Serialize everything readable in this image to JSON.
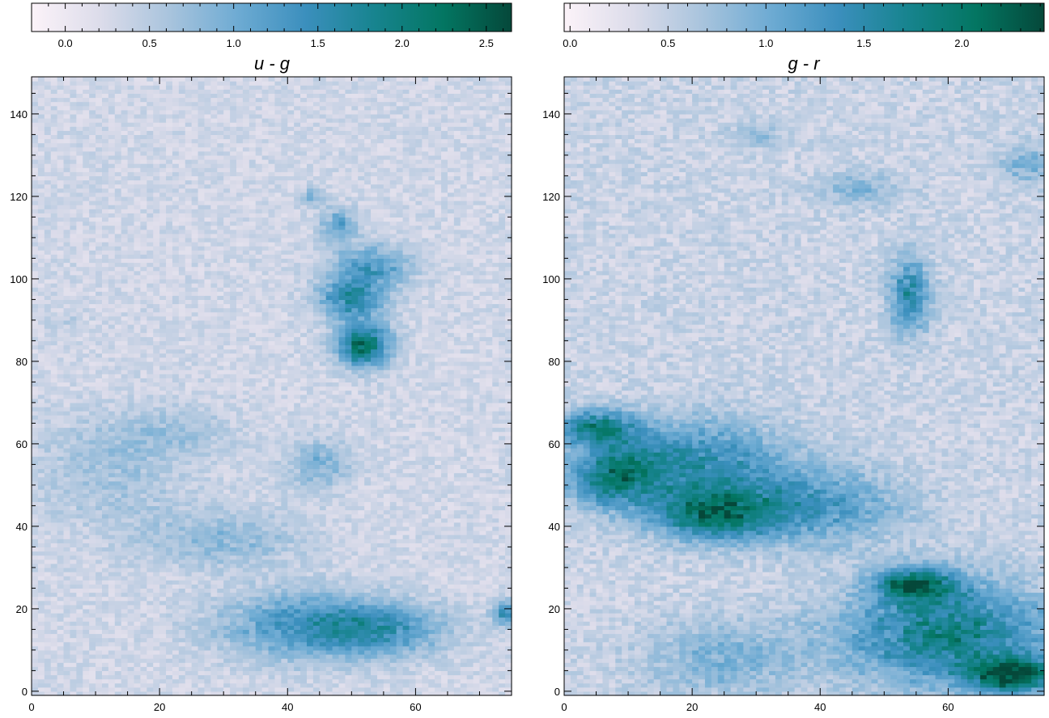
{
  "chart_data": [
    {
      "type": "heatmap",
      "title": "u - g",
      "colormap": [
        "#fcf3f9",
        "#dcdcea",
        "#a9c4dd",
        "#6eabd3",
        "#3b8fbd",
        "#17848f",
        "#037662",
        "#05483a"
      ],
      "colorbar": {
        "range": [
          -0.2,
          2.65
        ],
        "ticks": [
          0.0,
          0.5,
          1.0,
          1.5,
          2.0,
          2.5
        ],
        "tick_labels": [
          "0.0",
          "0.5",
          "1.0",
          "1.5",
          "2.0",
          "2.5"
        ]
      },
      "x_ticks": [
        0,
        20,
        40,
        60
      ],
      "x_tick_labels": [
        "0",
        "20",
        "40",
        "60"
      ],
      "y_ticks": [
        0,
        20,
        40,
        60,
        80,
        100,
        120,
        140
      ],
      "y_tick_labels": [
        "0",
        "20",
        "40",
        "60",
        "80",
        "100",
        "120",
        "140"
      ],
      "xlim": [
        0,
        75
      ],
      "ylim": [
        -1,
        149
      ],
      "grid": false,
      "base_value": 0.3,
      "features": [
        {
          "x": 52,
          "y": 84,
          "rx": 4,
          "ry": 5,
          "value": 2.3
        },
        {
          "x": 50,
          "y": 95,
          "rx": 5,
          "ry": 5,
          "value": 1.6
        },
        {
          "x": 53,
          "y": 103,
          "rx": 6,
          "ry": 5,
          "value": 1.3
        },
        {
          "x": 48,
          "y": 113,
          "rx": 3,
          "ry": 4,
          "value": 1.1
        },
        {
          "x": 45,
          "y": 55,
          "rx": 5,
          "ry": 6,
          "value": 0.9
        },
        {
          "x": 43,
          "y": 16,
          "rx": 13,
          "ry": 8,
          "value": 1.35
        },
        {
          "x": 55,
          "y": 15,
          "rx": 10,
          "ry": 6,
          "value": 1.2
        },
        {
          "x": 74,
          "y": 19,
          "rx": 2,
          "ry": 3,
          "value": 1.4
        },
        {
          "x": 30,
          "y": 37,
          "rx": 12,
          "ry": 7,
          "value": 0.8
        },
        {
          "x": 12,
          "y": 53,
          "rx": 12,
          "ry": 13,
          "value": 0.65
        },
        {
          "x": 22,
          "y": 63,
          "rx": 10,
          "ry": 6,
          "value": 0.6
        },
        {
          "x": 44,
          "y": 120,
          "rx": 2,
          "ry": 2,
          "value": 0.9
        },
        {
          "x": 5,
          "y": 90,
          "rx": 3,
          "ry": 2,
          "value": 0.5
        }
      ]
    },
    {
      "type": "heatmap",
      "title": "g - r",
      "colormap": [
        "#fcf3f9",
        "#dcdcea",
        "#a9c4dd",
        "#6eabd3",
        "#3b8fbd",
        "#17848f",
        "#037662",
        "#05483a"
      ],
      "colorbar": {
        "range": [
          -0.03,
          2.42
        ],
        "ticks": [
          0.0,
          0.5,
          1.0,
          1.5,
          2.0
        ],
        "tick_labels": [
          "0.0",
          "0.5",
          "1.0",
          "1.5",
          "2.0"
        ]
      },
      "x_ticks": [
        0,
        20,
        40,
        60
      ],
      "x_tick_labels": [
        "0",
        "20",
        "40",
        "60"
      ],
      "y_ticks": [
        0,
        20,
        40,
        60,
        80,
        100,
        120,
        140
      ],
      "y_tick_labels": [
        "0",
        "20",
        "40",
        "60",
        "80",
        "100",
        "120",
        "140"
      ],
      "xlim": [
        0,
        75
      ],
      "ylim": [
        -1,
        149
      ],
      "grid": false,
      "base_value": 0.45,
      "features": [
        {
          "x": 5,
          "y": 64,
          "rx": 6,
          "ry": 4,
          "value": 1.8
        },
        {
          "x": 8,
          "y": 52,
          "rx": 7,
          "ry": 7,
          "value": 1.7
        },
        {
          "x": 23,
          "y": 43,
          "rx": 9,
          "ry": 6,
          "value": 1.85
        },
        {
          "x": 20,
          "y": 56,
          "rx": 14,
          "ry": 10,
          "value": 1.4
        },
        {
          "x": 38,
          "y": 45,
          "rx": 14,
          "ry": 9,
          "value": 1.3
        },
        {
          "x": 55,
          "y": 26,
          "rx": 6,
          "ry": 4,
          "value": 2.0
        },
        {
          "x": 60,
          "y": 14,
          "rx": 16,
          "ry": 12,
          "value": 1.8
        },
        {
          "x": 70,
          "y": 4,
          "rx": 7,
          "ry": 4,
          "value": 2.2
        },
        {
          "x": 54,
          "y": 96,
          "rx": 3,
          "ry": 9,
          "value": 1.55
        },
        {
          "x": 46,
          "y": 122,
          "rx": 6,
          "ry": 4,
          "value": 0.9
        },
        {
          "x": 72,
          "y": 128,
          "rx": 4,
          "ry": 5,
          "value": 0.95
        },
        {
          "x": 30,
          "y": 135,
          "rx": 4,
          "ry": 3,
          "value": 0.8
        },
        {
          "x": 25,
          "y": 8,
          "rx": 12,
          "ry": 9,
          "value": 0.95
        }
      ]
    }
  ]
}
